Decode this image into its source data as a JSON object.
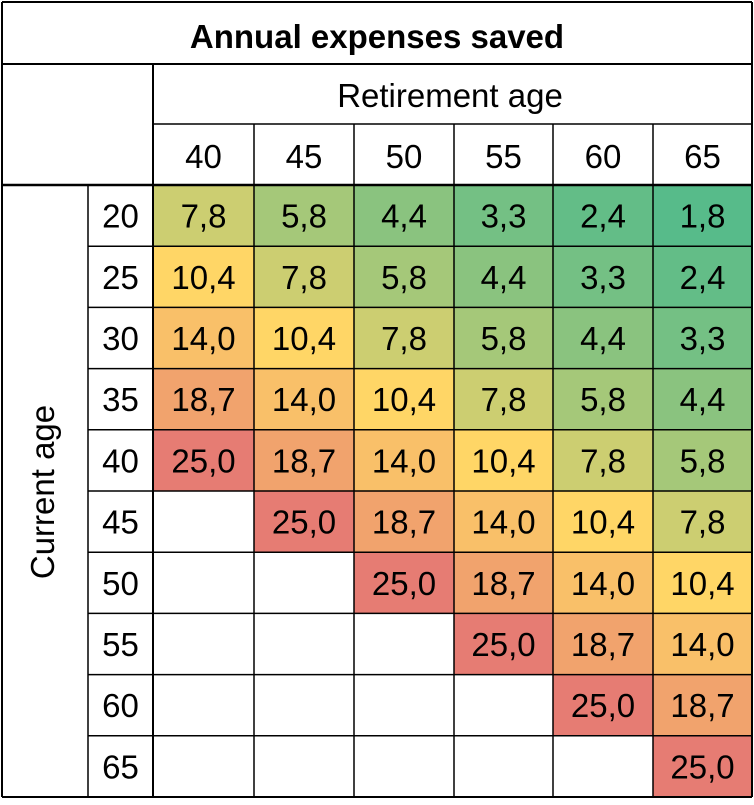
{
  "chart_data": {
    "type": "heatmap",
    "title": "Annual expenses saved",
    "column_axis_label": "Retirement age",
    "row_axis_label": "Current age",
    "columns": [
      "40",
      "45",
      "50",
      "55",
      "60",
      "65"
    ],
    "rows": [
      "20",
      "25",
      "30",
      "35",
      "40",
      "45",
      "50",
      "55",
      "60",
      "65"
    ],
    "cells": [
      [
        "7,8",
        "5,8",
        "4,4",
        "3,3",
        "2,4",
        "1,8"
      ],
      [
        "10,4",
        "7,8",
        "5,8",
        "4,4",
        "3,3",
        "2,4"
      ],
      [
        "14,0",
        "10,4",
        "7,8",
        "5,8",
        "4,4",
        "3,3"
      ],
      [
        "18,7",
        "14,0",
        "10,4",
        "7,8",
        "5,8",
        "4,4"
      ],
      [
        "25,0",
        "18,7",
        "14,0",
        "10,4",
        "7,8",
        "5,8"
      ],
      [
        null,
        "25,0",
        "18,7",
        "14,0",
        "10,4",
        "7,8"
      ],
      [
        null,
        null,
        "25,0",
        "18,7",
        "14,0",
        "10,4"
      ],
      [
        null,
        null,
        null,
        "25,0",
        "18,7",
        "14,0"
      ],
      [
        null,
        null,
        null,
        null,
        "25,0",
        "18,7"
      ],
      [
        null,
        null,
        null,
        null,
        null,
        "25,0"
      ]
    ],
    "color_scale": {
      "min_value": 1.8,
      "mid_value": 10.4,
      "max_value": 25.0,
      "min_color": "#57bb8a",
      "mid_color": "#ffd666",
      "max_color": "#e67c73"
    }
  }
}
